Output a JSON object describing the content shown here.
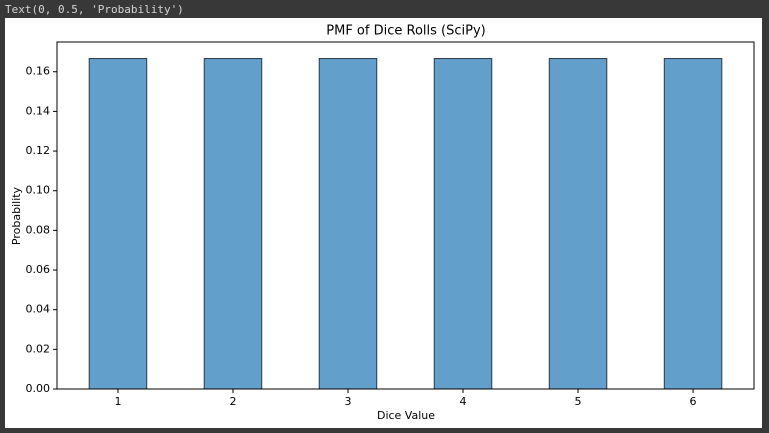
{
  "output_text": "Text(0, 0.5, 'Probability')",
  "chart_data": {
    "type": "bar",
    "title": "PMF of Dice Rolls (SciPy)",
    "x_label": "Dice Value",
    "y_label": "Probability",
    "x": [
      1,
      2,
      3,
      4,
      5,
      6
    ],
    "values": [
      0.16666666666666666,
      0.16666666666666666,
      0.16666666666666666,
      0.16666666666666666,
      0.16666666666666666,
      0.16666666666666666
    ],
    "color": "#62a0cb",
    "edge_color": "#2b3a48",
    "xlim": [
      0.47,
      6.53
    ],
    "xticks": [
      1,
      2,
      3,
      4,
      5,
      6
    ],
    "ylim": [
      0,
      0.175
    ],
    "yticks": [
      {
        "value": 0,
        "label": "0.00"
      },
      {
        "value": 0.02,
        "label": "0.02"
      },
      {
        "value": 0.04,
        "label": "0.04"
      },
      {
        "value": 0.06,
        "label": "0.06"
      },
      {
        "value": 0.08,
        "label": "0.08"
      },
      {
        "value": 0.1,
        "label": "0.10"
      },
      {
        "value": 0.12,
        "label": "0.12"
      },
      {
        "value": 0.14,
        "label": "0.14"
      },
      {
        "value": 0.16,
        "label": "0.16"
      }
    ],
    "grid": false
  }
}
